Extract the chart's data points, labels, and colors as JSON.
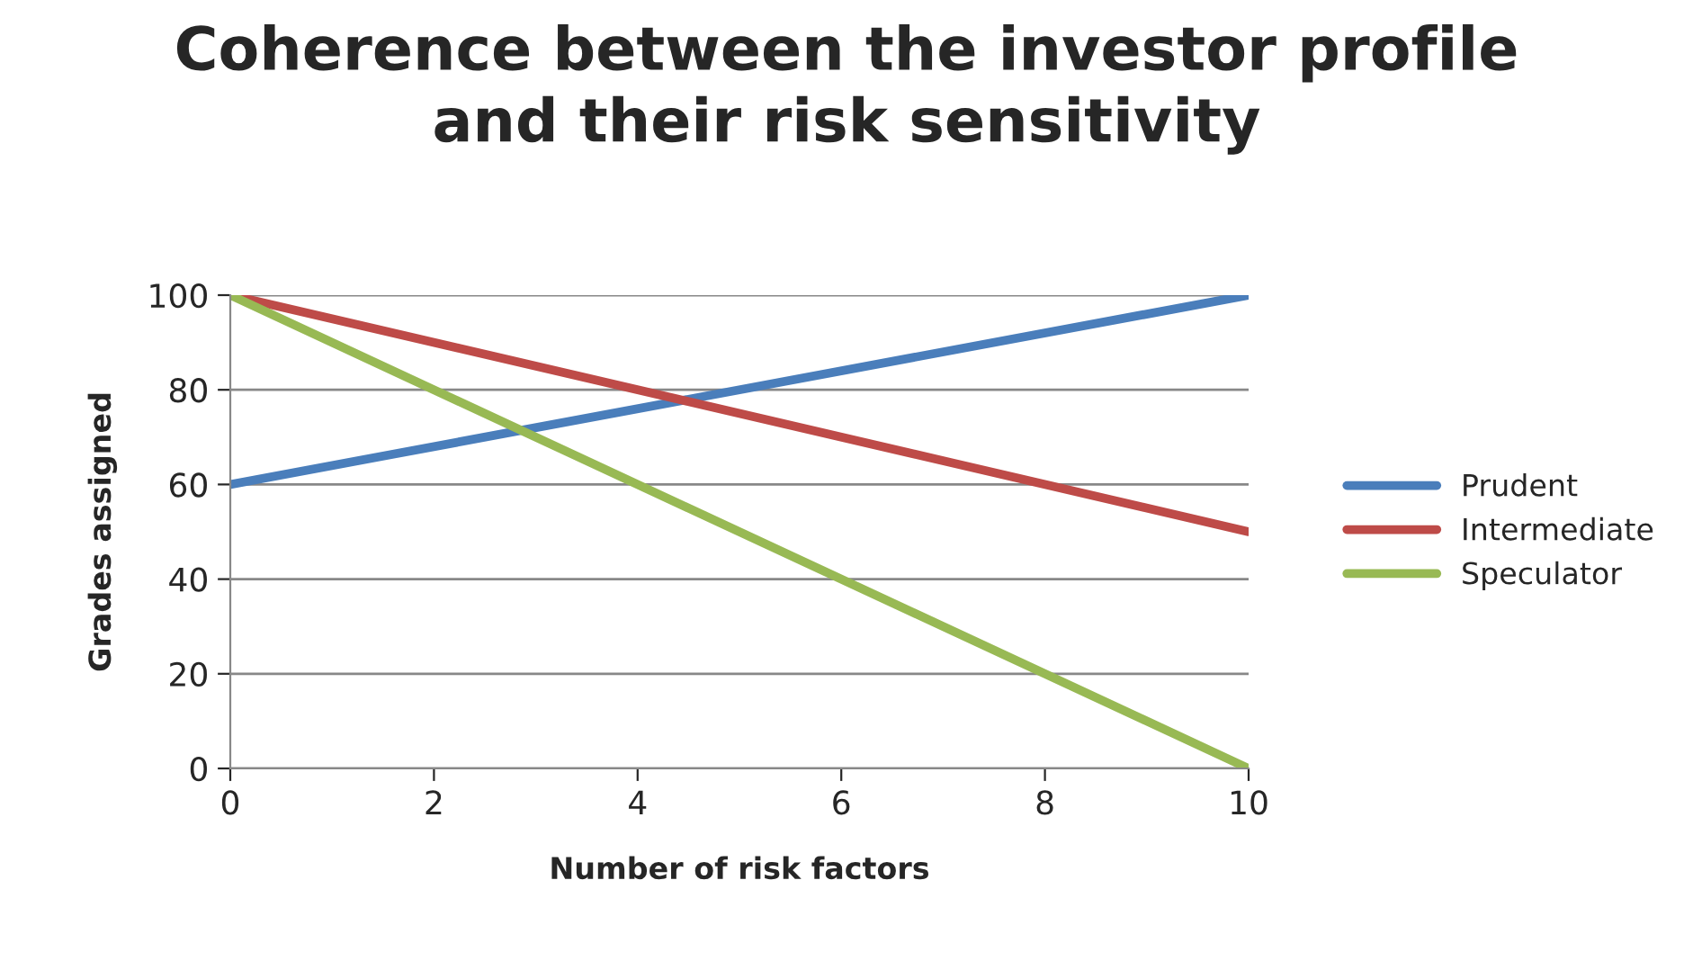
{
  "chart_data": {
    "type": "line",
    "title": "Coherence between the investor profile\nand their risk sensitivity",
    "xlabel": "Number of risk factors",
    "ylabel": "Grades assigned",
    "x": [
      0,
      10
    ],
    "series": [
      {
        "name": "Prudent",
        "color": "#4a7ebb",
        "values": [
          60,
          100
        ]
      },
      {
        "name": "Intermediate",
        "color": "#be4b48",
        "values": [
          100,
          50
        ]
      },
      {
        "name": "Speculator",
        "color": "#98b954",
        "values": [
          100,
          0
        ]
      }
    ],
    "xlim": [
      0,
      10
    ],
    "xticks": [
      0,
      2,
      4,
      6,
      8,
      10
    ],
    "ylim": [
      0,
      100
    ],
    "yticks": [
      0,
      20,
      40,
      60,
      80,
      100
    ],
    "grid": "y",
    "legend": "right",
    "marker": "none",
    "line_style": "solid"
  }
}
